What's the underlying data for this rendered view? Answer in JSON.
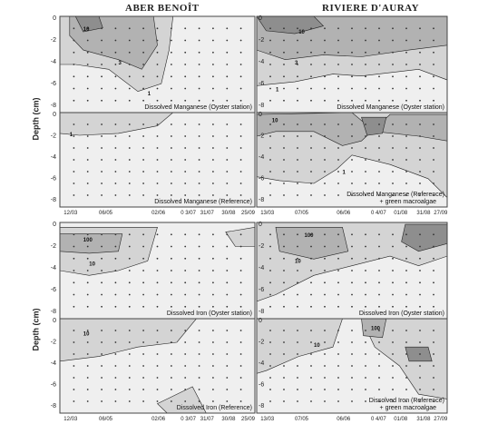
{
  "titles": {
    "left": "ABER BENOÎT",
    "right": "RIVIERE D'AURAY"
  },
  "ylabel": "Depth (cm)",
  "y_ticks": [
    "0",
    "-2",
    "-4",
    "-6",
    "-8"
  ],
  "x_ticks_left": [
    "12/03",
    "06/05",
    "02/06",
    "0 3/07",
    "31/07",
    "30/08",
    "25/09"
  ],
  "x_ticks_right": [
    "13/03",
    "07/05",
    "06/06",
    "0 4/07",
    "01/08",
    "31/08",
    "27/09"
  ],
  "colors": {
    "light": "#efefef",
    "mid": "#d4d4d4",
    "dark": "#b2b2b2",
    "darkest": "#8e8e8e",
    "line": "#222222"
  },
  "chart_data": [
    {
      "type": "heatmap",
      "id": "mn-aber-oyster",
      "annotation": "Dissolved Manganese (Oyster station)",
      "ylim": [
        -8,
        0
      ],
      "contour_labels": [
        "10",
        "3",
        "1"
      ]
    },
    {
      "type": "heatmap",
      "id": "mn-aber-ref",
      "annotation": "Dissolved Manganese (Reference)",
      "ylim": [
        -8,
        0
      ],
      "contour_labels": [
        "1"
      ]
    },
    {
      "type": "heatmap",
      "id": "mn-auray-oyster",
      "annotation": "Dissolved Manganese (Oyster station)",
      "ylim": [
        -8,
        0
      ],
      "contour_labels": [
        "10",
        "3",
        "1"
      ]
    },
    {
      "type": "heatmap",
      "id": "mn-auray-ref",
      "annotation": "Dissolved Manganese (Reference) + green macroalgae",
      "ylim": [
        -8,
        0
      ],
      "contour_labels": [
        "10",
        "1"
      ]
    },
    {
      "type": "heatmap",
      "id": "fe-aber-oyster",
      "annotation": "Dissolved Iron (Oyster station)",
      "ylim": [
        -8,
        0
      ],
      "contour_labels": [
        "100",
        "10"
      ]
    },
    {
      "type": "heatmap",
      "id": "fe-aber-ref",
      "annotation": "Dissolved Iron (Reference)",
      "ylim": [
        -8,
        0
      ],
      "contour_labels": [
        "10"
      ]
    },
    {
      "type": "heatmap",
      "id": "fe-auray-oyster",
      "annotation": "Dissolved Iron (Oyster station)",
      "ylim": [
        -8,
        0
      ],
      "contour_labels": [
        "100",
        "10"
      ]
    },
    {
      "type": "heatmap",
      "id": "fe-auray-ref",
      "annotation": "Dissolved Iron (Reference) + green macroalgae",
      "ylim": [
        -8,
        0
      ],
      "contour_labels": [
        "100",
        "10"
      ]
    }
  ]
}
